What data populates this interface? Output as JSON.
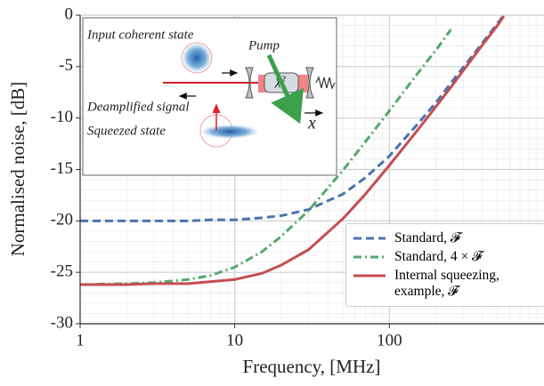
{
  "chart_data": {
    "type": "line",
    "x_label": "Frequency, [MHz]",
    "y_label": "Normalised noise, [dB]",
    "x_log": true,
    "grid": true,
    "xlim": [
      1,
      1000
    ],
    "xticks": [
      1,
      10,
      100
    ],
    "ylim": [
      -30,
      0
    ],
    "yticks": [
      0,
      -5,
      -10,
      -15,
      -20,
      -25,
      -30
    ],
    "legend": "lower right",
    "x": [
      1,
      2,
      3,
      5,
      7,
      10,
      15,
      20,
      30,
      50,
      70,
      100,
      150,
      200,
      250,
      300,
      400,
      500,
      550
    ],
    "series": [
      {
        "name": "Standard, 𝓕",
        "color": "#4c72b0",
        "style": "dashed",
        "values": [
          -20.0,
          -20.0,
          -20.0,
          -20.0,
          -19.9,
          -19.9,
          -19.7,
          -19.5,
          -18.9,
          -17.4,
          -15.8,
          -13.7,
          -10.7,
          -8.5,
          -6.6,
          -5.1,
          -2.7,
          -0.8,
          0.0
        ]
      },
      {
        "name": "Standard, 4 × 𝓕",
        "color": "#55a868",
        "style": "dashdot",
        "values": [
          -26.2,
          -26.1,
          -26.0,
          -25.7,
          -25.3,
          -24.5,
          -23.0,
          -21.5,
          -19.0,
          -15.1,
          -12.3,
          -9.3,
          -5.8,
          -3.4,
          -1.4,
          null,
          null,
          null,
          null
        ]
      },
      {
        "name": "Internal squeezing, example, 𝓕",
        "color": "#c44e52",
        "style": "solid",
        "values": [
          -26.2,
          -26.2,
          -26.1,
          -26.1,
          -25.9,
          -25.7,
          -25.1,
          -24.3,
          -22.8,
          -19.8,
          -17.4,
          -14.6,
          -11.3,
          -8.9,
          -7.0,
          -5.4,
          -2.9,
          -1.0,
          -0.1
        ]
      }
    ]
  },
  "inset": {
    "input_label": "Input coherent state",
    "pump_label": "Pump",
    "output_label": "Deamplified  signal",
    "squeezed_label": "Squeezed state",
    "crystal_label": "χ²",
    "axis_label": "x"
  }
}
